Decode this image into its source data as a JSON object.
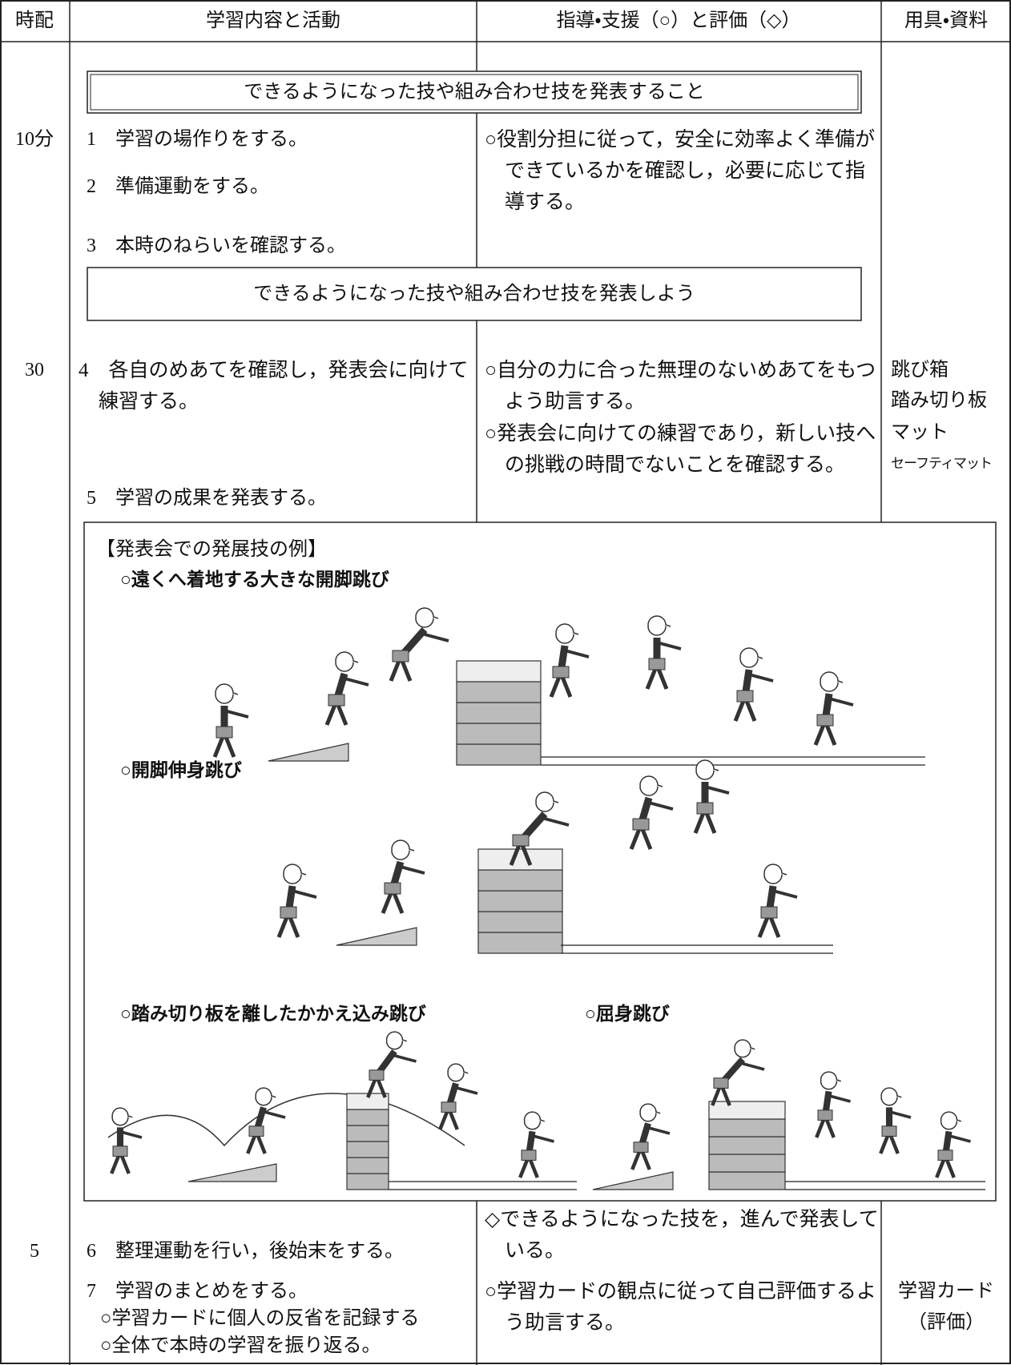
{
  "header": {
    "cells": [
      "時配",
      "学習内容と活動",
      "指導・支援（○）と評価（◇）",
      "用具・資料"
    ]
  },
  "goal_box": "できるようになった技や組み合わせ技を発表すること",
  "aim_box": "できるようになった技や組み合わせ技を発表しよう",
  "rows": [
    {
      "time": "10分",
      "activities": [
        "1　学習の場作りをする。",
        "2　準備運動をする。",
        "3　本時のねらいを確認する。"
      ],
      "guidance": [
        "○役割分担に従って，安全に効率よく準備ができているかを確認し，必要に応じて指導する。"
      ]
    },
    {
      "time": "30",
      "activities": [
        "4　各自のめあてを確認し，発表会に向けて練習する。",
        "5　学習の成果を発表する。"
      ],
      "guidance": [
        "○自分の力に合った無理のないめあてをもつよう助言する。",
        "○発表会に向けての練習であり，新しい技への挑戦の時間でないことを確認する。"
      ],
      "materials": [
        "跳び箱",
        "踏み切り板",
        "マット",
        "セーフティマット"
      ]
    },
    {
      "time": "5",
      "activities": [
        "6　整理運動を行い，後始末をする。",
        "7　学習のまとめをする。"
      ],
      "sub_activities": [
        "○学習カードに個人の反省を記録する",
        "○全体で本時の学習を振り返る。"
      ],
      "guidance": [
        "◇できるようになった技を，進んで発表している。",
        "○学習カードの観点に従って自己評価するよう助言する。"
      ],
      "materials": [
        "学習カード",
        "（評価）"
      ]
    }
  ],
  "figure": {
    "title": "【発表会での発展技の例】",
    "captions": [
      "○遠くへ着地する大きな開脚跳び",
      "○開脚伸身跳び",
      "○踏み切り板を離したかかえ込み跳び",
      "○屈身跳び"
    ]
  }
}
